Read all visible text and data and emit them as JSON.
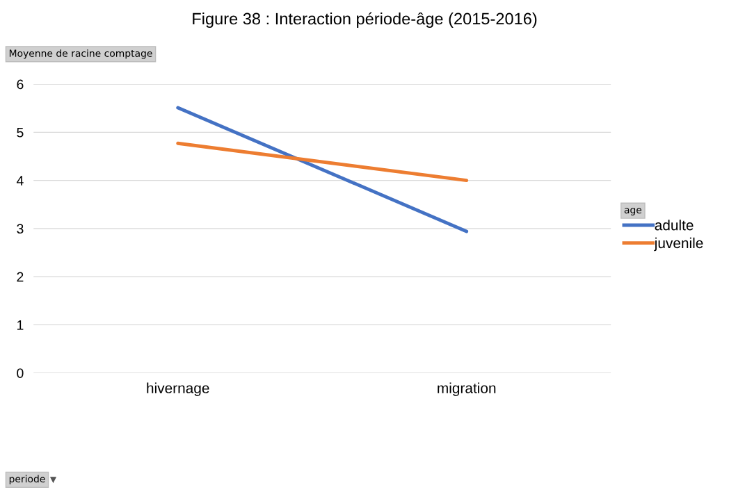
{
  "chart_data": {
    "type": "line",
    "title": "Figure 38 : Interaction période-âge (2015-2016)",
    "ylabel": "Moyenne de racine comptage",
    "annotations": [
      "periode"
    ],
    "legend_title": "age",
    "categories": [
      "hivernage",
      "migration"
    ],
    "series": [
      {
        "name": "adulte",
        "color": "#4472c4",
        "values": [
          5.51,
          2.94
        ]
      },
      {
        "name": "juvenile",
        "color": "#ed7d31",
        "values": [
          4.77,
          4.0
        ]
      }
    ],
    "ylim": [
      0,
      6
    ],
    "yticks": [
      0,
      1,
      2,
      3,
      4,
      5,
      6
    ],
    "grid": "y",
    "legend": "right",
    "marker": "none",
    "line_style": "solid"
  }
}
